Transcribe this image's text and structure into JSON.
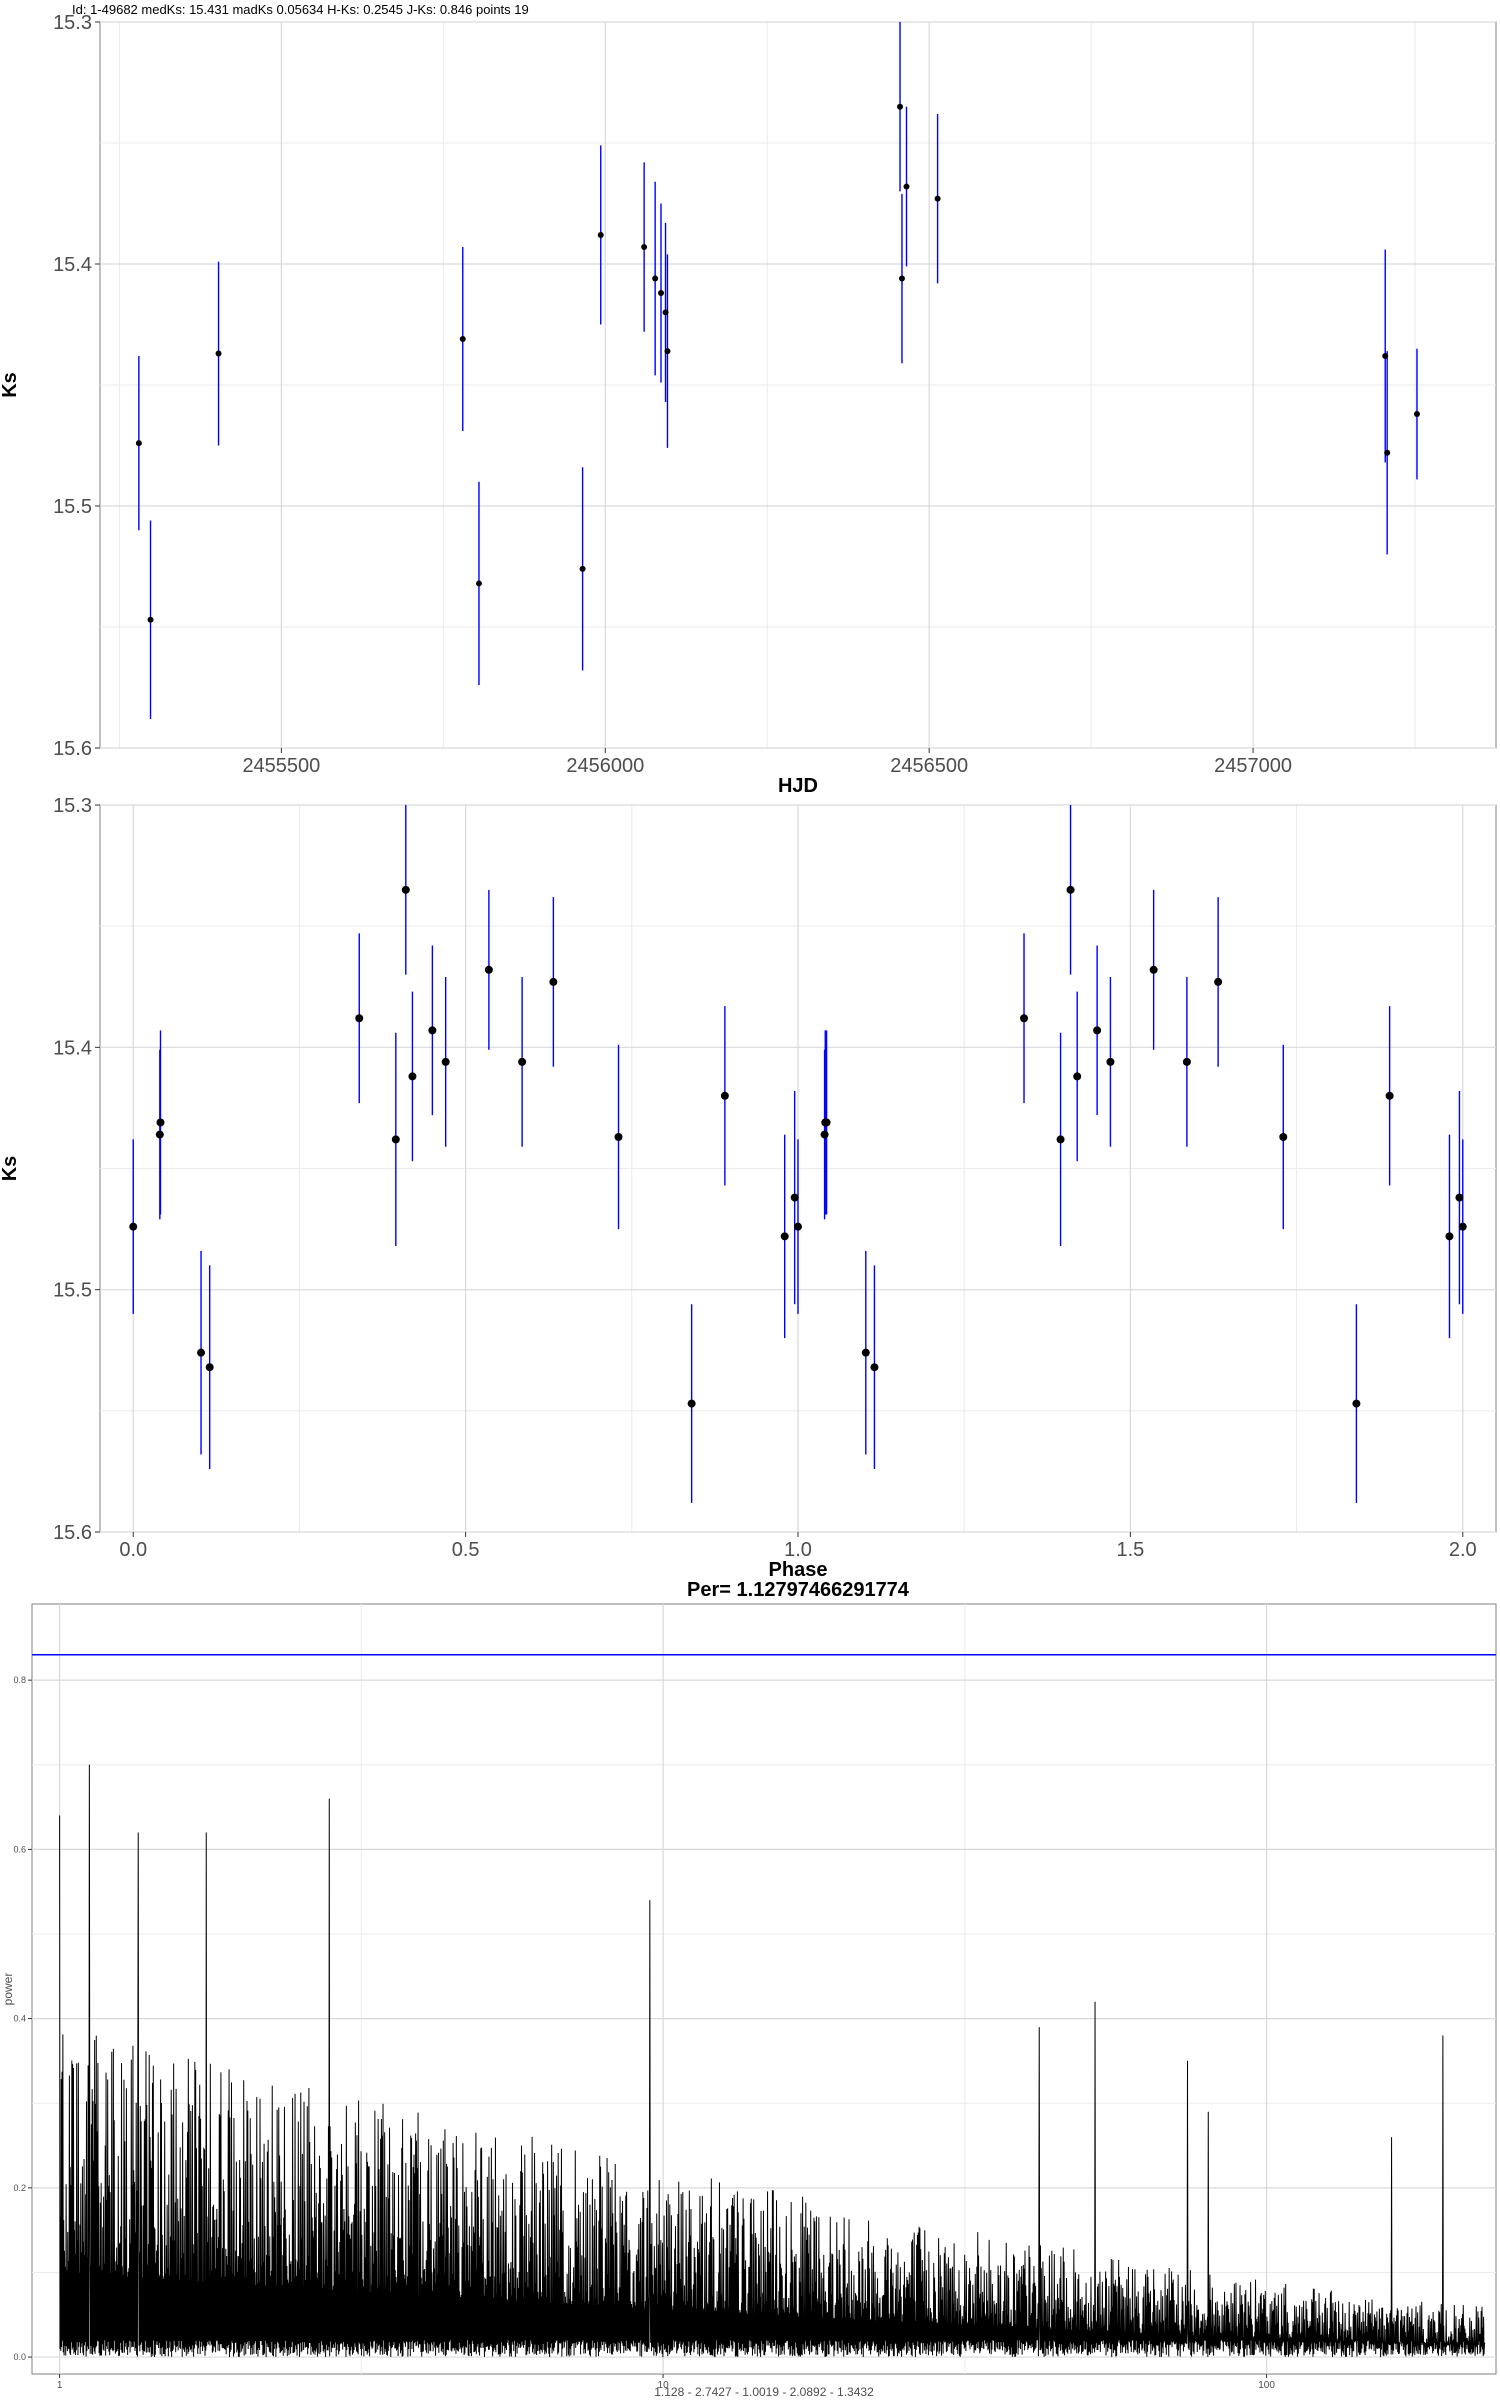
{
  "chart_data": [
    {
      "id": "lightcurve",
      "type": "scatter",
      "title": "Id: 1-49682 medKs: 15.431 madKs 0.05634 H-Ks: 0.2545 J-Ks: 0.846 points 19",
      "xlabel": "HJD",
      "ylabel": "Ks",
      "xlim": [
        2455220,
        2457375
      ],
      "ylim": [
        15.3,
        15.6
      ],
      "y_reversed": true,
      "xticks": [
        2455500,
        2456000,
        2456500,
        2457000
      ],
      "xticklabels": [
        "2455500",
        "2456000",
        "2456500",
        "2457000"
      ],
      "yticks": [
        15.3,
        15.4,
        15.5,
        15.6
      ],
      "yticklabels": [
        "15.3",
        "15.4",
        "15.5",
        "15.6"
      ],
      "grid": true,
      "point_color": "#000000",
      "errorbar_color": "#0000ff",
      "series": [
        {
          "x": [
            2455280,
            2455298,
            2455403,
            2455780,
            2455805,
            2455965,
            2455993,
            2456060,
            2456077,
            2456086,
            2456093,
            2456096,
            2456455,
            2456465,
            2456458,
            2456513,
            2457204,
            2457207,
            2457253
          ],
          "y": [
            15.474,
            15.547,
            15.437,
            15.431,
            15.532,
            15.526,
            15.388,
            15.393,
            15.406,
            15.412,
            15.42,
            15.436,
            15.335,
            15.368,
            15.406,
            15.373,
            15.438,
            15.478,
            15.462
          ],
          "err": [
            0.036,
            0.041,
            0.038,
            0.038,
            0.042,
            0.042,
            0.037,
            0.035,
            0.04,
            0.037,
            0.037,
            0.04,
            0.035,
            0.033,
            0.035,
            0.035,
            0.044,
            0.042,
            0.027
          ]
        }
      ]
    },
    {
      "id": "phased",
      "type": "scatter",
      "xlabel": "Phase",
      "ylabel": "Ks",
      "subtitle": "Per= 1.12797466291774",
      "xlim": [
        -0.05,
        2.05
      ],
      "ylim": [
        15.3,
        15.6
      ],
      "y_reversed": true,
      "xticks": [
        0.0,
        0.5,
        1.0,
        1.5,
        2.0
      ],
      "xticklabels": [
        "0.0",
        "0.5",
        "1.0",
        "1.5",
        "2.0"
      ],
      "yticks": [
        15.3,
        15.4,
        15.5,
        15.6
      ],
      "yticklabels": [
        "15.3",
        "15.4",
        "15.5",
        "15.6"
      ],
      "grid": true,
      "point_color": "#000000",
      "errorbar_color": "#0000ff",
      "series": [
        {
          "x": [
            0.0,
            0.04,
            0.041,
            0.102,
            0.115,
            0.34,
            0.395,
            0.41,
            0.42,
            0.45,
            0.47,
            0.535,
            0.585,
            0.632,
            0.73,
            0.84,
            0.89,
            0.98,
            0.995,
            1.0,
            1.04,
            1.041,
            1.043,
            1.102,
            1.115,
            1.34,
            1.395,
            1.41,
            1.42,
            1.45,
            1.47,
            1.535,
            1.585,
            1.632,
            1.73,
            1.84,
            1.89,
            1.98,
            1.995,
            2.0
          ],
          "y": [
            15.474,
            15.436,
            15.431,
            15.526,
            15.532,
            15.388,
            15.438,
            15.335,
            15.412,
            15.393,
            15.406,
            15.368,
            15.406,
            15.373,
            15.437,
            15.547,
            15.42,
            15.478,
            15.462,
            15.474,
            15.436,
            15.431,
            15.431,
            15.526,
            15.532,
            15.388,
            15.438,
            15.335,
            15.412,
            15.393,
            15.406,
            15.368,
            15.406,
            15.373,
            15.437,
            15.547,
            15.42,
            15.478,
            15.462,
            15.474
          ],
          "err": [
            0.036,
            0.035,
            0.038,
            0.042,
            0.042,
            0.035,
            0.044,
            0.035,
            0.035,
            0.035,
            0.035,
            0.033,
            0.035,
            0.035,
            0.038,
            0.041,
            0.037,
            0.042,
            0.044,
            0.036,
            0.035,
            0.038,
            0.038,
            0.042,
            0.042,
            0.035,
            0.044,
            0.035,
            0.035,
            0.035,
            0.035,
            0.033,
            0.035,
            0.035,
            0.038,
            0.041,
            0.037,
            0.042,
            0.044,
            0.036
          ]
        }
      ]
    },
    {
      "id": "periodogram",
      "type": "line",
      "xlabel": "1.128 - 2.7427 - 1.0019 - 2.0892 - 1.3432",
      "ylabel": "power",
      "x_scale": "log",
      "xlim": [
        0.9,
        240
      ],
      "ylim": [
        -0.02,
        0.89
      ],
      "xticks": [
        1,
        10,
        100
      ],
      "xticklabels": [
        "1",
        "10",
        "100"
      ],
      "yticks": [
        0.0,
        0.2,
        0.4,
        0.6,
        0.8
      ],
      "yticklabels": [
        "0.0",
        "0.2",
        "0.4",
        "0.6",
        "0.8"
      ],
      "grid": true,
      "line_color": "#000000",
      "threshold": 0.83,
      "threshold_color": "#0000ff",
      "generator": {
        "x_min": 1.0,
        "x_max": 230,
        "n_points": 3500,
        "peaks": [
          {
            "x": 1.0,
            "power": 0.64
          },
          {
            "x": 1.12,
            "power": 0.7
          },
          {
            "x": 1.35,
            "power": 0.62
          },
          {
            "x": 1.75,
            "power": 0.62
          },
          {
            "x": 2.8,
            "power": 0.66
          },
          {
            "x": 9.5,
            "power": 0.54
          },
          {
            "x": 42,
            "power": 0.39
          },
          {
            "x": 52,
            "power": 0.42
          },
          {
            "x": 74,
            "power": 0.35
          },
          {
            "x": 80,
            "power": 0.29
          },
          {
            "x": 161,
            "power": 0.26
          },
          {
            "x": 196,
            "power": 0.38
          }
        ]
      }
    }
  ]
}
